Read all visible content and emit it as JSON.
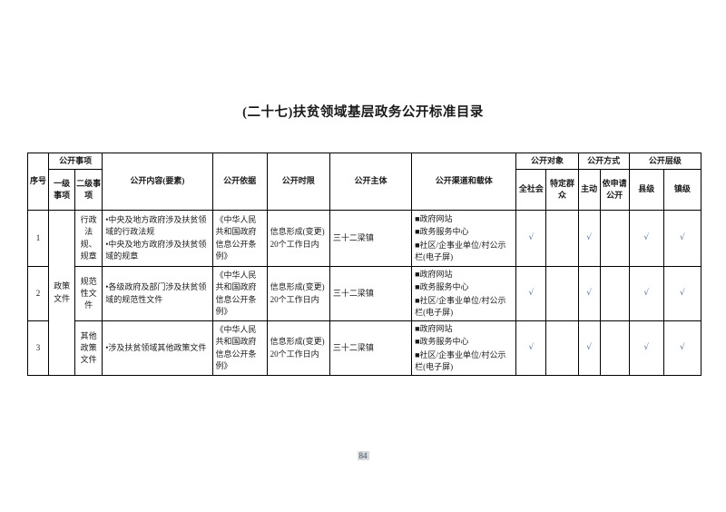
{
  "page": {
    "title": "(二十七)扶贫领域基层政务公开标准目录",
    "page_number": "84"
  },
  "colors": {
    "text": "#1a1a1a",
    "border": "#000000",
    "checkmark": "#5a739e",
    "pagenum_bg": "#d9d9d9"
  },
  "table": {
    "header": {
      "serial": "序号",
      "disclosure_matters": "公开事项",
      "level1": "一级事项",
      "level2": "二级事项",
      "content": "公开内容(要素)",
      "basis": "公开依据",
      "time_limit": "公开时限",
      "subject": "公开主体",
      "channels": "公开渠道和载体",
      "audience": "公开对象",
      "all_society": "全社会",
      "specific_group": "特定群众",
      "method": "公开方式",
      "active": "主动",
      "on_request": "依申请公开",
      "level": "公开层级",
      "county": "县级",
      "town": "镇级"
    },
    "rows": [
      {
        "no": "1",
        "level1": "政策文件",
        "level2": "行政法规、规章",
        "content_items": [
          "•中央及地方政府涉及扶贫领域的行政法规",
          "•中央及地方政府涉及扶贫领域的规章"
        ],
        "basis": "《中华人民共和国政府信息公开条例》",
        "time_limit": "信息形成(变更)20个工作日内",
        "subject": "三十二梁镇",
        "channels": [
          "■政府网站",
          "■政务服务中心",
          "■社区/企事业单位/村公示栏(电子屏)"
        ],
        "marks": {
          "all_society": "√",
          "specific_group": "",
          "active": "√",
          "on_request": "",
          "county": "√",
          "town": "√"
        }
      },
      {
        "no": "2",
        "level2": "规范性文件",
        "content_items": [
          "•各级政府及部门涉及扶贫领域的规范性文件"
        ],
        "basis": "《中华人民共和国政府信息公开条例》",
        "time_limit": "信息形成(变更)20个工作日内",
        "subject": "三十二梁镇",
        "channels": [
          "■政府网站",
          "■政务服务中心",
          "■社区/企事业单位/村公示栏(电子屏)"
        ],
        "marks": {
          "all_society": "√",
          "specific_group": "",
          "active": "√",
          "on_request": "",
          "county": "√",
          "town": "√"
        }
      },
      {
        "no": "3",
        "level2": "其他政策文件",
        "content_items": [
          "•涉及扶贫领域其他政策文件"
        ],
        "basis": "《中华人民共和国政府信息公开条例》",
        "time_limit": "信息形成(变更)20个工作日内",
        "subject": "三十二梁镇",
        "channels": [
          "■政府网站",
          "■政务服务中心",
          "■社区/企事业单位/村公示栏(电子屏)"
        ],
        "marks": {
          "all_society": "√",
          "specific_group": "",
          "active": "√",
          "on_request": "",
          "county": "√",
          "town": "√"
        }
      }
    ]
  }
}
